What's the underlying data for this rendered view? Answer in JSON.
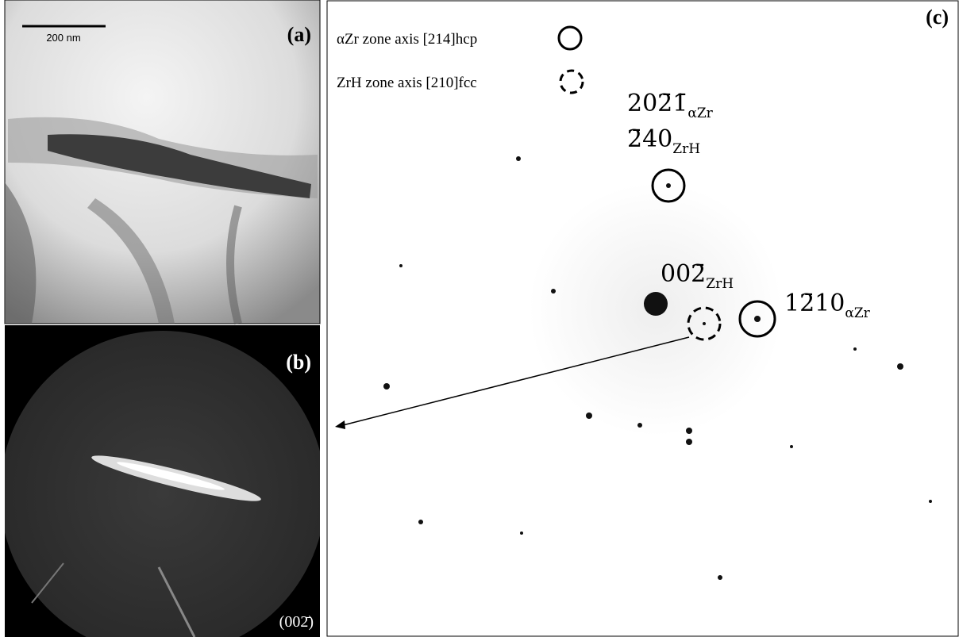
{
  "panels": [
    {
      "label": "(a)",
      "scale_bar": "200 nm"
    },
    {
      "label": "(b)",
      "reflection": "(002̄)"
    },
    {
      "label": "(c)",
      "legend": [
        "αZr zone axis [214]hcp",
        "ZrH zone axis [210]fcc"
      ],
      "annotations": [
        {
          "index": "202̄1̄",
          "phase": "αZr"
        },
        {
          "index": "2̄40",
          "phase": "ZrH"
        },
        {
          "index": "002̄",
          "phase": "ZrH"
        },
        {
          "index": "12̄10",
          "phase": "αZr"
        }
      ]
    }
  ]
}
